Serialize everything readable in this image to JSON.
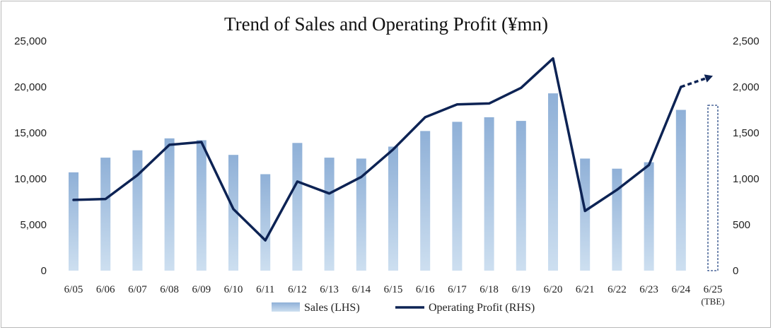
{
  "chart_data": {
    "type": "bar+line",
    "title": "Trend of Sales and Operating Profit (¥mn)",
    "categories": [
      "6/05",
      "6/06",
      "6/07",
      "6/08",
      "6/09",
      "6/10",
      "6/11",
      "6/12",
      "6/13",
      "6/14",
      "6/15",
      "6/16",
      "6/17",
      "6/18",
      "6/19",
      "6/20",
      "6/21",
      "6/22",
      "6/23",
      "6/24",
      "6/25"
    ],
    "category_notes": {
      "6/25": "(TBE)"
    },
    "series": [
      {
        "name": "Sales (LHS)",
        "type": "bar",
        "axis": "left",
        "values": [
          10700,
          12300,
          13100,
          14400,
          14200,
          12600,
          10500,
          13900,
          12300,
          12200,
          13500,
          15200,
          16200,
          16700,
          16300,
          19300,
          12200,
          11100,
          11800,
          17500,
          18000
        ],
        "forecast_from_index": 20
      },
      {
        "name": "Operating Profit (RHS)",
        "type": "line",
        "axis": "right",
        "values": [
          770,
          780,
          1040,
          1370,
          1400,
          670,
          330,
          970,
          840,
          1020,
          1320,
          1670,
          1810,
          1820,
          1990,
          2310,
          650,
          880,
          1150,
          2000,
          2120
        ],
        "forecast_from_index": 19
      }
    ],
    "yleft": {
      "min": 0,
      "max": 25000,
      "ticks": [
        "0",
        "5,000",
        "10,000",
        "15,000",
        "20,000",
        "25,000"
      ]
    },
    "yright": {
      "min": 0,
      "max": 2500,
      "ticks": [
        "0",
        "500",
        "1,000",
        "1,500",
        "2,000",
        "2,500"
      ]
    },
    "grid": false,
    "legend_position": "bottom-center",
    "colors": {
      "bar_top": "#8fb0d7",
      "bar_bottom": "#cddff0",
      "line": "#0d2354",
      "forecast_border": "#2a4a86"
    }
  }
}
